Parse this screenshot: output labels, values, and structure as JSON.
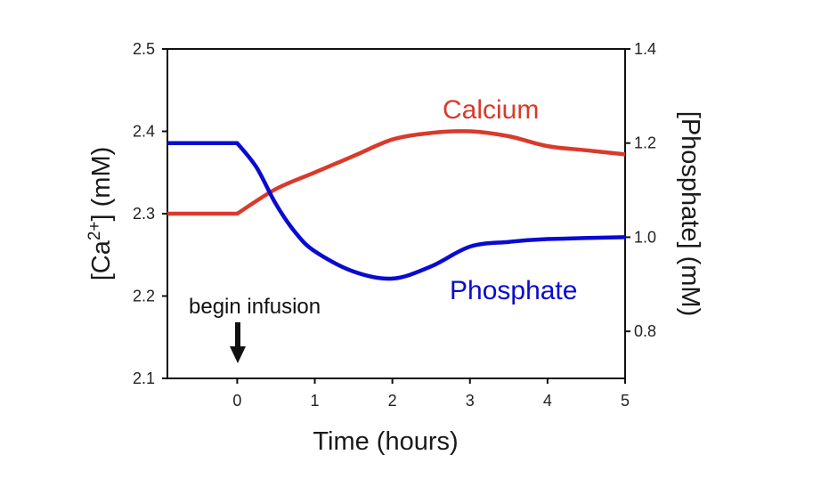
{
  "chart_data": {
    "type": "line",
    "title": "",
    "xlabel": "Time (hours)",
    "ylabel_left": "[Ca2+] (mM)",
    "ylabel_left_parts": {
      "prefix": "[Ca",
      "sup": "2+",
      "suffix": "] (mM)"
    },
    "ylabel_right": "[Phosphate] (mM)",
    "xlim": [
      -0.9,
      5
    ],
    "ylim_left": [
      2.1,
      2.5
    ],
    "ylim_right": [
      0.7,
      1.4
    ],
    "x_ticks": [
      0,
      1,
      2,
      3,
      4,
      5
    ],
    "x_tick_labels": [
      "0",
      "1",
      "2",
      "3",
      "4",
      "5"
    ],
    "y_left_ticks": [
      2.1,
      2.2,
      2.3,
      2.4,
      2.5
    ],
    "y_left_tick_labels": [
      "2.1",
      "2.2",
      "2.3",
      "2.4",
      "2.5"
    ],
    "y_right_ticks": [
      0.8,
      1.0,
      1.2,
      1.4
    ],
    "y_right_tick_labels": [
      "0.8",
      "1.0",
      "1.2",
      "1.4"
    ],
    "grid": false,
    "legend": "inline labels",
    "series": [
      {
        "name": "Calcium",
        "axis": "left",
        "color": "#d93a2b",
        "x": [
          -0.9,
          0,
          0.5,
          1,
          1.5,
          2,
          2.5,
          3,
          3.5,
          4,
          4.5,
          5
        ],
        "values": [
          2.3,
          2.3,
          2.33,
          2.35,
          2.37,
          2.39,
          2.398,
          2.4,
          2.394,
          2.382,
          2.377,
          2.372
        ]
      },
      {
        "name": "Phosphate",
        "axis": "right",
        "color": "#0a0ad0",
        "x": [
          -0.9,
          0,
          0.25,
          0.5,
          0.75,
          1,
          1.5,
          2,
          2.5,
          3,
          3.5,
          4,
          5
        ],
        "values": [
          1.2,
          1.2,
          1.148,
          1.07,
          1.01,
          0.97,
          0.927,
          0.912,
          0.938,
          0.98,
          0.99,
          0.996,
          1.0
        ]
      }
    ],
    "annotations": [
      {
        "text": "begin infusion",
        "x": 0,
        "arrow": "down",
        "arrow_tip_y_left_axis": 2.12
      }
    ],
    "series_labels": [
      {
        "text": "Calcium",
        "color": "#d93a2b"
      },
      {
        "text": "Phosphate",
        "color": "#0a0ad0"
      }
    ]
  }
}
